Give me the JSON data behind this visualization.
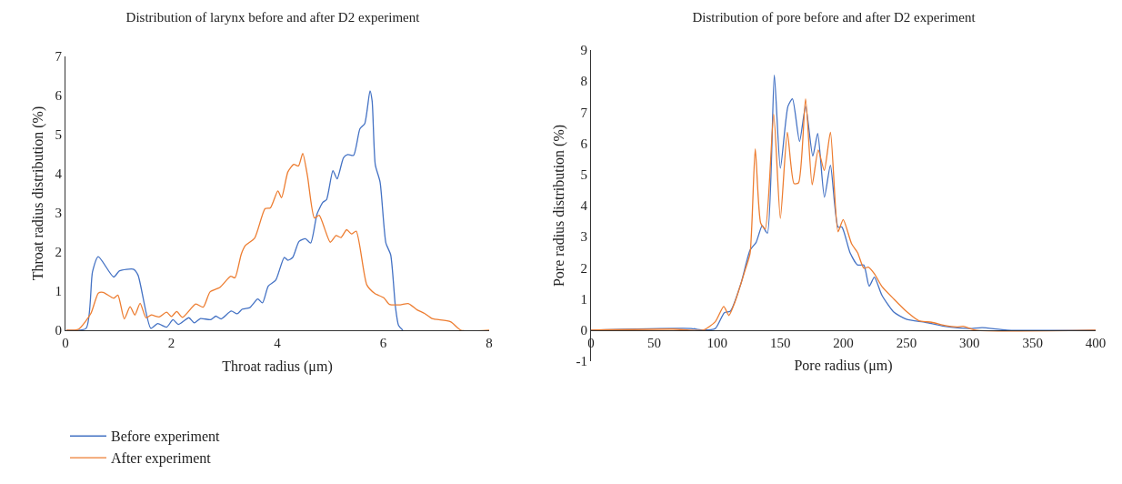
{
  "chart_data": [
    {
      "type": "line",
      "title": "Distribution of larynx before and after D2 experiment",
      "xlabel": "Throat radius (μm)",
      "ylabel": "Throat radius distribution (%)",
      "xlim": [
        0,
        8
      ],
      "xticks": [
        0,
        2,
        4,
        6,
        8
      ],
      "ylim": [
        0,
        7
      ],
      "yticks": [
        0,
        1,
        2,
        3,
        4,
        5,
        6,
        7
      ],
      "legend": "bottom left",
      "series": [
        {
          "name": "Before experiment",
          "color": "#4472c4",
          "x": [
            0.02,
            0.39,
            0.51,
            0.62,
            0.91,
            1.02,
            1.28,
            1.37,
            1.61,
            1.74,
            1.91,
            2.03,
            2.13,
            2.33,
            2.43,
            2.55,
            2.74,
            2.84,
            2.94,
            3.13,
            3.24,
            3.34,
            3.48,
            3.63,
            3.72,
            3.83,
            3.97,
            4.13,
            4.2,
            4.29,
            4.41,
            4.53,
            4.63,
            4.75,
            4.86,
            4.93,
            5.05,
            5.13,
            5.25,
            5.33,
            5.44,
            5.56,
            5.65,
            5.75,
            5.79,
            5.85,
            5.94,
            6.05,
            6.14,
            6.23,
            6.29,
            6.37
          ],
          "values": [
            0,
            0.05,
            1.49,
            1.88,
            1.36,
            1.52,
            1.56,
            1.41,
            0.05,
            0.17,
            0.08,
            0.27,
            0.15,
            0.32,
            0.19,
            0.3,
            0.27,
            0.36,
            0.29,
            0.49,
            0.42,
            0.54,
            0.58,
            0.8,
            0.7,
            1.13,
            1.28,
            1.86,
            1.79,
            1.86,
            2.27,
            2.34,
            2.23,
            2.97,
            3.27,
            3.34,
            4.08,
            3.87,
            4.41,
            4.49,
            4.47,
            5.15,
            5.28,
            6.12,
            5.86,
            4.23,
            3.79,
            2.23,
            1.93,
            0.6,
            0.12,
            0
          ]
        },
        {
          "name": "After experiment",
          "color": "#ed7d31",
          "x": [
            0.02,
            0.25,
            0.48,
            0.62,
            0.71,
            0.91,
            0.99,
            1.11,
            1.22,
            1.31,
            1.41,
            1.52,
            1.62,
            1.77,
            1.91,
            2.0,
            2.1,
            2.21,
            2.46,
            2.6,
            2.73,
            2.92,
            3.12,
            3.2,
            3.32,
            3.4,
            3.57,
            3.77,
            3.87,
            4.01,
            4.08,
            4.2,
            4.31,
            4.4,
            4.48,
            4.57,
            4.7,
            4.79,
            5.0,
            5.11,
            5.2,
            5.31,
            5.4,
            5.49,
            5.69,
            5.84,
            6.01,
            6.12,
            6.32,
            6.48,
            6.64,
            6.78,
            6.92,
            7.27,
            7.47,
            8
          ],
          "values": [
            0,
            0.03,
            0.43,
            0.95,
            0.97,
            0.82,
            0.9,
            0.29,
            0.6,
            0.39,
            0.69,
            0.32,
            0.39,
            0.34,
            0.46,
            0.35,
            0.48,
            0.33,
            0.67,
            0.59,
            0.98,
            1.1,
            1.38,
            1.34,
            1.95,
            2.17,
            2.35,
            3.11,
            3.13,
            3.56,
            3.39,
            4.05,
            4.24,
            4.2,
            4.52,
            3.94,
            2.87,
            2.94,
            2.25,
            2.42,
            2.37,
            2.57,
            2.46,
            2.53,
            1.16,
            0.94,
            0.83,
            0.66,
            0.65,
            0.68,
            0.52,
            0.43,
            0.3,
            0.22,
            0,
            0
          ]
        }
      ]
    },
    {
      "type": "line",
      "title": "Distribution of pore before and after D2 experiment",
      "xlabel": "Pore radius (μm)",
      "ylabel": "Pore radius distribution (%)",
      "xlim": [
        0,
        400
      ],
      "xticks": [
        0,
        50,
        100,
        150,
        200,
        250,
        300,
        350,
        400
      ],
      "ylim": [
        -1,
        9
      ],
      "yticks": [
        -1,
        0,
        1,
        2,
        3,
        4,
        5,
        6,
        7,
        8,
        9
      ],
      "series": [
        {
          "color": "#4472c4",
          "x": [
            0,
            79.3,
            88.9,
            98.5,
            105.7,
            110.5,
            118.9,
            126.1,
            130.9,
            135.7,
            139.8,
            145.3,
            150.1,
            156.1,
            159.7,
            165.3,
            170.1,
            175.8,
            179.7,
            185,
            189.8,
            195.8,
            198.9,
            205.4,
            211.4,
            216.2,
            220.5,
            224.6,
            230.6,
            240,
            250,
            265,
            280,
            300,
            310,
            330,
            400
          ],
          "values": [
            0,
            0.05,
            0,
            0.05,
            0.56,
            0.61,
            1.5,
            2.57,
            2.82,
            3.35,
            3.11,
            8.2,
            5.2,
            7.19,
            7.43,
            6.06,
            7.19,
            5.59,
            6.32,
            4.27,
            5.3,
            3.31,
            3.31,
            2.48,
            2.09,
            2.09,
            1.41,
            1.7,
            1.12,
            0.58,
            0.35,
            0.25,
            0.12,
            0.05,
            0.08,
            0,
            0
          ]
        },
        {
          "color": "#ed7d31",
          "x": [
            0,
            65.1,
            88.9,
            98.5,
            105.2,
            109.3,
            114.1,
            122.5,
            126.1,
            130.2,
            134.5,
            138.1,
            144.8,
            150.1,
            155.6,
            160.9,
            164.5,
            170.1,
            175.3,
            180.1,
            184.9,
            189.8,
            195.8,
            199.9,
            206.6,
            211.4,
            216.2,
            219.8,
            224.6,
            230.6,
            240,
            250,
            260,
            270,
            280,
            290,
            295,
            305,
            400
          ],
          "values": [
            0,
            0.03,
            0,
            0.27,
            0.76,
            0.47,
            0.9,
            1.97,
            2.47,
            5.82,
            3.44,
            3.25,
            6.94,
            3.59,
            6.36,
            4.71,
            4.73,
            7.43,
            4.67,
            5.79,
            5.13,
            6.36,
            3.16,
            3.55,
            2.77,
            2.48,
            1.99,
            2.02,
            1.81,
            1.4,
            1.0,
            0.6,
            0.3,
            0.25,
            0.15,
            0.1,
            0.12,
            0,
            0
          ]
        }
      ]
    }
  ]
}
